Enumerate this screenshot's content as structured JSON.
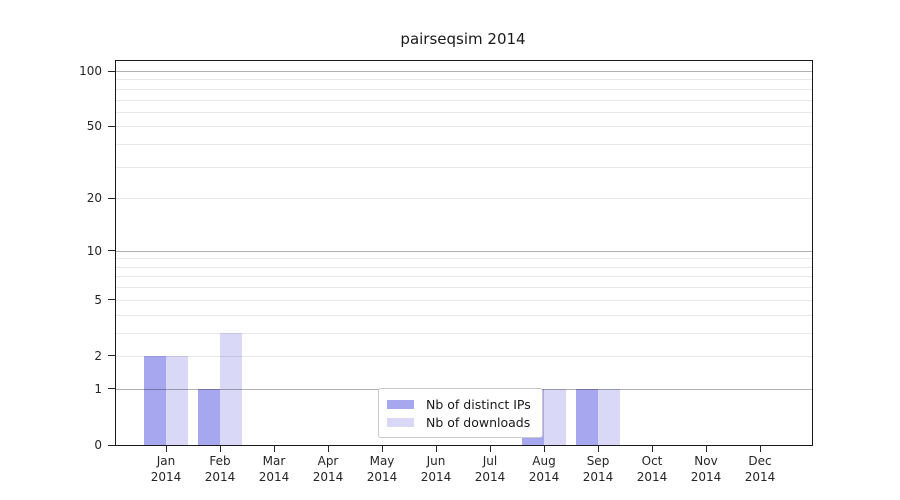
{
  "figure": {
    "title": "pairseqsim 2014"
  },
  "legend": {
    "items": [
      {
        "label": "Nb of distinct IPs",
        "color": "#a7a7f0"
      },
      {
        "label": "Nb of downloads",
        "color": "#d9d9f7"
      }
    ]
  },
  "chart_data": {
    "type": "bar",
    "title": "pairseqsim 2014",
    "categories": [
      "Jan 2014",
      "Feb 2014",
      "Mar 2014",
      "Apr 2014",
      "May 2014",
      "Jun 2014",
      "Jul 2014",
      "Aug 2014",
      "Sep 2014",
      "Oct 2014",
      "Nov 2014",
      "Dec 2014"
    ],
    "series": [
      {
        "name": "Nb of distinct IPs",
        "color": "#a7a7f0",
        "values": [
          2,
          1,
          0,
          0,
          0,
          0,
          0,
          1,
          1,
          0,
          0,
          0
        ]
      },
      {
        "name": "Nb of downloads",
        "color": "#d9d9f7",
        "values": [
          2,
          3,
          0,
          0,
          0,
          0,
          0,
          1,
          1,
          0,
          0,
          0
        ]
      }
    ],
    "xlabel": "",
    "ylabel": "",
    "y_scale": "log1p",
    "ylim": [
      0,
      113
    ],
    "y_ticks": [
      0,
      1,
      2,
      5,
      10,
      20,
      50,
      100
    ],
    "y_major_gridlines": [
      1,
      10,
      100
    ],
    "y_minor_gridlines": [
      2,
      3,
      4,
      5,
      6,
      7,
      8,
      9,
      20,
      30,
      40,
      50,
      60,
      70,
      80,
      90
    ],
    "grid": "horizontal",
    "grid_over_bars": true,
    "legend_position": "inside-bottom-center",
    "colors": {
      "grid_major": "rgba(0,0,0,0.30)",
      "grid_minor": "rgba(0,0,0,0.09)",
      "spine": "#1a1a1a",
      "tick_label": "#262626"
    }
  }
}
